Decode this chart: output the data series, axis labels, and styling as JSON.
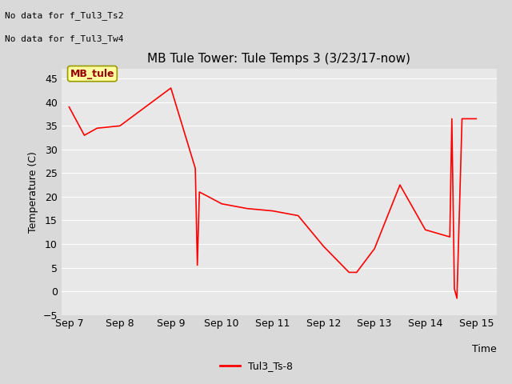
{
  "title": "MB Tule Tower: Tule Temps 3 (3/23/17-now)",
  "xlabel": "Time",
  "ylabel": "Temperature (C)",
  "ylim": [
    -5,
    47
  ],
  "yticks": [
    -5,
    0,
    5,
    10,
    15,
    20,
    25,
    30,
    35,
    40,
    45
  ],
  "bg_color": "#e8e8e8",
  "fig_bg_color": "#d9d9d9",
  "line_color": "#ff0000",
  "annotation_texts": [
    "No data for f_Tul3_Ts2",
    "No data for f_Tul3_Tw4"
  ],
  "legend_label": "Tul3_Ts-8",
  "mb_tule_label": "MB_tule",
  "x_values": [
    0,
    0.3,
    0.55,
    1.0,
    2.0,
    2.48,
    2.52,
    2.56,
    2.65,
    3.0,
    3.5,
    4.0,
    4.5,
    5.0,
    5.5,
    5.65,
    6.0,
    6.5,
    7.0,
    7.48,
    7.52,
    7.57,
    7.62,
    7.72,
    8.0
  ],
  "y_values": [
    39.0,
    33.0,
    34.5,
    35.0,
    43.0,
    26.0,
    5.5,
    21.0,
    20.5,
    18.5,
    17.5,
    17.0,
    16.0,
    9.5,
    4.0,
    4.0,
    9.0,
    22.5,
    13.0,
    11.5,
    36.5,
    0.5,
    -1.5,
    36.5,
    36.5
  ],
  "xtick_positions": [
    0,
    1,
    2,
    3,
    4,
    5,
    6,
    7,
    8
  ],
  "xtick_labels": [
    "Sep 7",
    "Sep 8",
    "Sep 9",
    "Sep 10",
    "Sep 11",
    "Sep 12",
    "Sep 13",
    "Sep 14",
    "Sep 15"
  ],
  "grid_color": "#ffffff",
  "title_fontsize": 11,
  "axis_fontsize": 9,
  "tick_fontsize": 9,
  "annot_fontsize": 8,
  "legend_fontsize": 9
}
